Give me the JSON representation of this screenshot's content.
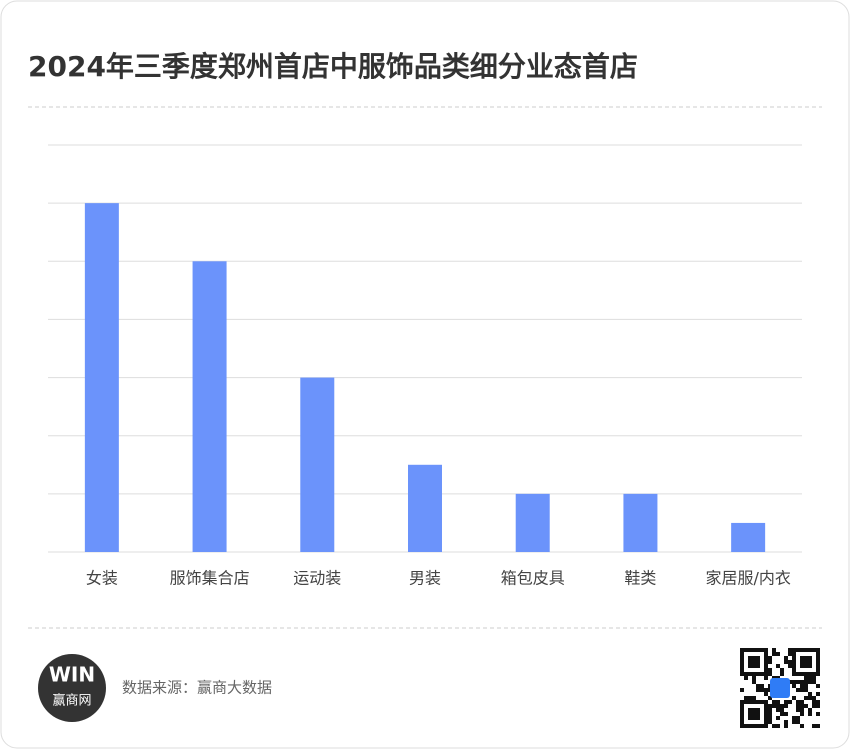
{
  "chart_data": {
    "type": "bar",
    "title": "2024年三季度郑州首店中服饰品类细分业态首店",
    "categories": [
      "女装",
      "服饰集合店",
      "运动装",
      "男装",
      "箱包皮具",
      "鞋类",
      "家居服/内衣"
    ],
    "values": [
      6,
      5,
      3,
      1.5,
      1,
      1,
      0.5
    ],
    "color": "#6b93fb",
    "ylim": [
      0,
      7
    ],
    "yticks": [
      0,
      1,
      2,
      3,
      4,
      5,
      6,
      7
    ],
    "grid": true
  },
  "footer": {
    "logo_mark": "WIN",
    "logo_name": "赢商网",
    "source": "数据来源：赢商大数据"
  }
}
